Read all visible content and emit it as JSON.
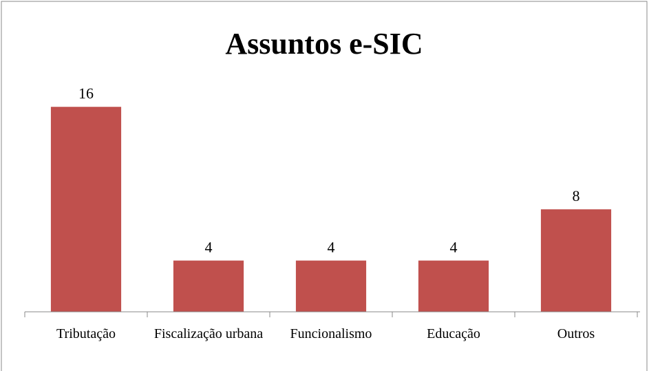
{
  "chart_data": {
    "type": "bar",
    "title": "Assuntos e-SIC",
    "categories": [
      "Tributação",
      "Fiscalização urbana",
      "Funcionalismo",
      "Educação",
      "Outros"
    ],
    "values": [
      16,
      4,
      4,
      4,
      8
    ],
    "color": "#c0504d",
    "ylim": [
      0,
      18
    ]
  }
}
